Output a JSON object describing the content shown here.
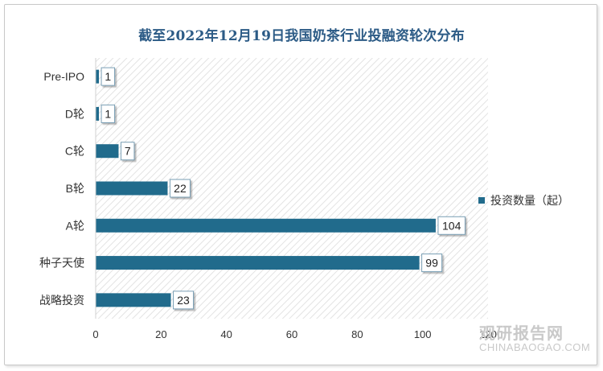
{
  "title": "截至2022年12月19日我国奶茶行业投融资轮次分布",
  "colors": {
    "bar": "#216b8c",
    "title": "#2c5b86",
    "axis": "#d0d0d0"
  },
  "watermark": {
    "cn": "观研报告网",
    "en": "CHINABAOGAO.COM"
  },
  "chart_data": {
    "type": "bar",
    "orientation": "horizontal",
    "title": "截至2022年12月19日我国奶茶行业投融资轮次分布",
    "categories": [
      "Pre-IPO",
      "D轮",
      "C轮",
      "B轮",
      "A轮",
      "种子天使",
      "战略投资"
    ],
    "series": [
      {
        "name": "投资数量（起）",
        "values": [
          1,
          1,
          7,
          22,
          104,
          99,
          23
        ]
      }
    ],
    "xlim": [
      0,
      120
    ],
    "xticks": [
      0,
      20,
      40,
      60,
      80,
      100,
      120
    ],
    "grid": false,
    "legend": "right"
  }
}
